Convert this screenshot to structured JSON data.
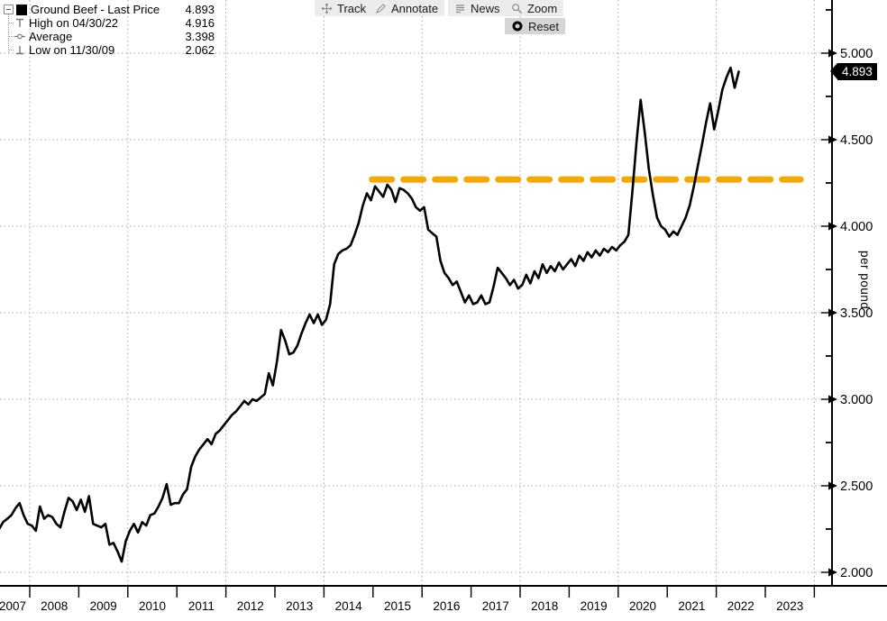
{
  "legend": {
    "series_label": "Ground Beef - Last Price",
    "series_value": "4.893",
    "rows": [
      {
        "icon": "high-marker-icon",
        "label": "High on 04/30/22",
        "value": "4.916"
      },
      {
        "icon": "average-marker-icon",
        "label": "Average",
        "value": "3.398"
      },
      {
        "icon": "low-marker-icon",
        "label": "Low on 11/30/09",
        "value": "2.062"
      }
    ]
  },
  "toolbar": {
    "track": "Track",
    "annotate": "Annotate",
    "news": "News",
    "zoom": "Zoom",
    "reset": "Reset"
  },
  "badge": {
    "last_price": "4.893"
  },
  "axis": {
    "unit_label": "per pound"
  },
  "colors": {
    "series": "#000000",
    "reference": "#F5A800",
    "grid": "#a6a6a6",
    "axis": "#000000"
  },
  "chart_data": {
    "type": "line",
    "title": "Ground Beef - Last Price",
    "ylabel": "per pound",
    "ylim": [
      1.95,
      5.3
    ],
    "grid": true,
    "x_years": [
      2007,
      2008,
      2009,
      2010,
      2011,
      2012,
      2013,
      2014,
      2015,
      2016,
      2017,
      2018,
      2019,
      2020,
      2021,
      2022,
      2023
    ],
    "y_ticks": [
      {
        "v": 2.0,
        "label": "2.000"
      },
      {
        "v": 2.5,
        "label": "2.500"
      },
      {
        "v": 3.0,
        "label": "3.000"
      },
      {
        "v": 3.5,
        "label": "3.500"
      },
      {
        "v": 4.0,
        "label": "4.000"
      },
      {
        "v": 4.5,
        "label": "4.500"
      },
      {
        "v": 5.0,
        "label": "5.000"
      }
    ],
    "stats": {
      "last_price": 4.893,
      "high_date": "04/30/22",
      "high": 4.916,
      "average": 3.398,
      "low_date": "11/30/09",
      "low": 2.062
    },
    "reference_line": {
      "value": 4.27,
      "x_from": 2014.98,
      "x_to": 2023.72,
      "style": "dashed",
      "color": "#F5A800"
    },
    "series": [
      {
        "name": "Ground Beef - Last Price",
        "color": "#000000",
        "points": [
          [
            "2007-05",
            2.25
          ],
          [
            "2007-06",
            2.29
          ],
          [
            "2007-07",
            2.31
          ],
          [
            "2007-08",
            2.33
          ],
          [
            "2007-09",
            2.37
          ],
          [
            "2007-10",
            2.4
          ],
          [
            "2007-11",
            2.33
          ],
          [
            "2007-12",
            2.28
          ],
          [
            "2008-01",
            2.27
          ],
          [
            "2008-02",
            2.24
          ],
          [
            "2008-03",
            2.38
          ],
          [
            "2008-04",
            2.31
          ],
          [
            "2008-05",
            2.33
          ],
          [
            "2008-06",
            2.32
          ],
          [
            "2008-07",
            2.28
          ],
          [
            "2008-08",
            2.26
          ],
          [
            "2008-09",
            2.35
          ],
          [
            "2008-10",
            2.43
          ],
          [
            "2008-11",
            2.41
          ],
          [
            "2008-12",
            2.36
          ],
          [
            "2009-01",
            2.42
          ],
          [
            "2009-02",
            2.35
          ],
          [
            "2009-03",
            2.44
          ],
          [
            "2009-04",
            2.28
          ],
          [
            "2009-05",
            2.27
          ],
          [
            "2009-06",
            2.26
          ],
          [
            "2009-07",
            2.28
          ],
          [
            "2009-08",
            2.16
          ],
          [
            "2009-09",
            2.17
          ],
          [
            "2009-10",
            2.12
          ],
          [
            "2009-11",
            2.062
          ],
          [
            "2009-12",
            2.18
          ],
          [
            "2010-01",
            2.24
          ],
          [
            "2010-02",
            2.28
          ],
          [
            "2010-03",
            2.23
          ],
          [
            "2010-04",
            2.29
          ],
          [
            "2010-05",
            2.27
          ],
          [
            "2010-06",
            2.33
          ],
          [
            "2010-07",
            2.34
          ],
          [
            "2010-08",
            2.38
          ],
          [
            "2010-09",
            2.43
          ],
          [
            "2010-10",
            2.51
          ],
          [
            "2010-11",
            2.39
          ],
          [
            "2010-12",
            2.4
          ],
          [
            "2011-01",
            2.4
          ],
          [
            "2011-02",
            2.45
          ],
          [
            "2011-03",
            2.48
          ],
          [
            "2011-04",
            2.61
          ],
          [
            "2011-05",
            2.67
          ],
          [
            "2011-06",
            2.71
          ],
          [
            "2011-07",
            2.74
          ],
          [
            "2011-08",
            2.77
          ],
          [
            "2011-09",
            2.74
          ],
          [
            "2011-10",
            2.8
          ],
          [
            "2011-11",
            2.82
          ],
          [
            "2011-12",
            2.85
          ],
          [
            "2012-01",
            2.88
          ],
          [
            "2012-02",
            2.91
          ],
          [
            "2012-03",
            2.93
          ],
          [
            "2012-04",
            2.96
          ],
          [
            "2012-05",
            2.99
          ],
          [
            "2012-06",
            2.97
          ],
          [
            "2012-07",
            3.0
          ],
          [
            "2012-08",
            2.99
          ],
          [
            "2012-09",
            3.01
          ],
          [
            "2012-10",
            3.03
          ],
          [
            "2012-11",
            3.15
          ],
          [
            "2012-12",
            3.08
          ],
          [
            "2013-01",
            3.22
          ],
          [
            "2013-02",
            3.4
          ],
          [
            "2013-03",
            3.34
          ],
          [
            "2013-04",
            3.26
          ],
          [
            "2013-05",
            3.27
          ],
          [
            "2013-06",
            3.31
          ],
          [
            "2013-07",
            3.38
          ],
          [
            "2013-08",
            3.44
          ],
          [
            "2013-09",
            3.49
          ],
          [
            "2013-10",
            3.44
          ],
          [
            "2013-11",
            3.49
          ],
          [
            "2013-12",
            3.43
          ],
          [
            "2014-01",
            3.46
          ],
          [
            "2014-02",
            3.55
          ],
          [
            "2014-03",
            3.78
          ],
          [
            "2014-04",
            3.84
          ],
          [
            "2014-05",
            3.86
          ],
          [
            "2014-06",
            3.87
          ],
          [
            "2014-07",
            3.89
          ],
          [
            "2014-08",
            3.95
          ],
          [
            "2014-09",
            4.02
          ],
          [
            "2014-10",
            4.12
          ],
          [
            "2014-11",
            4.19
          ],
          [
            "2014-12",
            4.15
          ],
          [
            "2015-01",
            4.23
          ],
          [
            "2015-02",
            4.2
          ],
          [
            "2015-03",
            4.17
          ],
          [
            "2015-04",
            4.24
          ],
          [
            "2015-05",
            4.21
          ],
          [
            "2015-06",
            4.14
          ],
          [
            "2015-07",
            4.22
          ],
          [
            "2015-08",
            4.21
          ],
          [
            "2015-09",
            4.19
          ],
          [
            "2015-10",
            4.16
          ],
          [
            "2015-11",
            4.11
          ],
          [
            "2015-12",
            4.09
          ],
          [
            "2016-01",
            4.11
          ],
          [
            "2016-02",
            3.98
          ],
          [
            "2016-03",
            3.96
          ],
          [
            "2016-04",
            3.94
          ],
          [
            "2016-05",
            3.8
          ],
          [
            "2016-06",
            3.73
          ],
          [
            "2016-07",
            3.7
          ],
          [
            "2016-08",
            3.66
          ],
          [
            "2016-09",
            3.68
          ],
          [
            "2016-10",
            3.62
          ],
          [
            "2016-11",
            3.56
          ],
          [
            "2016-12",
            3.6
          ],
          [
            "2017-01",
            3.55
          ],
          [
            "2017-02",
            3.56
          ],
          [
            "2017-03",
            3.6
          ],
          [
            "2017-04",
            3.55
          ],
          [
            "2017-05",
            3.56
          ],
          [
            "2017-06",
            3.65
          ],
          [
            "2017-07",
            3.76
          ],
          [
            "2017-08",
            3.73
          ],
          [
            "2017-09",
            3.7
          ],
          [
            "2017-10",
            3.66
          ],
          [
            "2017-11",
            3.69
          ],
          [
            "2017-12",
            3.64
          ],
          [
            "2018-01",
            3.66
          ],
          [
            "2018-02",
            3.72
          ],
          [
            "2018-03",
            3.67
          ],
          [
            "2018-04",
            3.74
          ],
          [
            "2018-05",
            3.7
          ],
          [
            "2018-06",
            3.78
          ],
          [
            "2018-07",
            3.73
          ],
          [
            "2018-08",
            3.77
          ],
          [
            "2018-09",
            3.74
          ],
          [
            "2018-10",
            3.79
          ],
          [
            "2018-11",
            3.75
          ],
          [
            "2018-12",
            3.78
          ],
          [
            "2019-01",
            3.81
          ],
          [
            "2019-02",
            3.77
          ],
          [
            "2019-03",
            3.83
          ],
          [
            "2019-04",
            3.8
          ],
          [
            "2019-05",
            3.85
          ],
          [
            "2019-06",
            3.82
          ],
          [
            "2019-07",
            3.86
          ],
          [
            "2019-08",
            3.83
          ],
          [
            "2019-09",
            3.87
          ],
          [
            "2019-10",
            3.85
          ],
          [
            "2019-11",
            3.88
          ],
          [
            "2019-12",
            3.86
          ],
          [
            "2020-01",
            3.89
          ],
          [
            "2020-02",
            3.91
          ],
          [
            "2020-03",
            3.95
          ],
          [
            "2020-04",
            4.21
          ],
          [
            "2020-05",
            4.49
          ],
          [
            "2020-06",
            4.73
          ],
          [
            "2020-07",
            4.54
          ],
          [
            "2020-08",
            4.33
          ],
          [
            "2020-09",
            4.18
          ],
          [
            "2020-10",
            4.05
          ],
          [
            "2020-11",
            4.0
          ],
          [
            "2020-12",
            3.98
          ],
          [
            "2021-01",
            3.94
          ],
          [
            "2021-02",
            3.97
          ],
          [
            "2021-03",
            3.95
          ],
          [
            "2021-04",
            4.0
          ],
          [
            "2021-05",
            4.05
          ],
          [
            "2021-06",
            4.12
          ],
          [
            "2021-07",
            4.23
          ],
          [
            "2021-08",
            4.35
          ],
          [
            "2021-09",
            4.47
          ],
          [
            "2021-10",
            4.6
          ],
          [
            "2021-11",
            4.71
          ],
          [
            "2021-12",
            4.56
          ],
          [
            "2022-01",
            4.67
          ],
          [
            "2022-02",
            4.79
          ],
          [
            "2022-03",
            4.86
          ],
          [
            "2022-04",
            4.916
          ],
          [
            "2022-05",
            4.8
          ],
          [
            "2022-06",
            4.893
          ]
        ]
      }
    ]
  }
}
